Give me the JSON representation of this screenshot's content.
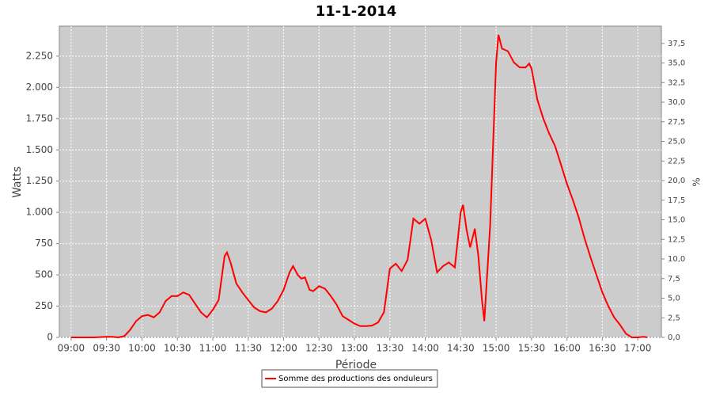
{
  "chart_data": {
    "type": "line",
    "title": "11-1-2014",
    "x_label": "Période",
    "y_label": "Watts",
    "y2_label": "%",
    "x": [
      "09:00",
      "09:10",
      "09:20",
      "09:30",
      "09:35",
      "09:40",
      "09:45",
      "09:50",
      "09:55",
      "10:00",
      "10:05",
      "10:10",
      "10:15",
      "10:20",
      "10:25",
      "10:30",
      "10:35",
      "10:40",
      "10:45",
      "10:50",
      "10:55",
      "11:00",
      "11:05",
      "11:10",
      "11:12",
      "11:15",
      "11:20",
      "11:25",
      "11:30",
      "11:35",
      "11:40",
      "11:45",
      "11:50",
      "11:55",
      "12:00",
      "12:05",
      "12:08",
      "12:12",
      "12:15",
      "12:18",
      "12:22",
      "12:25",
      "12:30",
      "12:35",
      "12:40",
      "12:45",
      "12:50",
      "12:55",
      "13:00",
      "13:05",
      "13:10",
      "13:15",
      "13:20",
      "13:25",
      "13:30",
      "13:35",
      "13:40",
      "13:45",
      "13:50",
      "13:55",
      "14:00",
      "14:05",
      "14:10",
      "14:15",
      "14:20",
      "14:25",
      "14:30",
      "14:32",
      "14:35",
      "14:38",
      "14:42",
      "14:45",
      "14:48",
      "14:50",
      "14:55",
      "15:00",
      "15:02",
      "15:05",
      "15:10",
      "15:15",
      "15:20",
      "15:25",
      "15:28",
      "15:30",
      "15:35",
      "15:40",
      "15:45",
      "15:50",
      "15:55",
      "16:00",
      "16:05",
      "16:10",
      "16:15",
      "16:20",
      "16:25",
      "16:30",
      "16:35",
      "16:40",
      "16:45",
      "16:50",
      "16:55",
      "17:00",
      "17:05",
      "17:08"
    ],
    "series": [
      {
        "name": "Somme des productions des onduleurs",
        "color": "#ff0000",
        "values": [
          0,
          0,
          0,
          5,
          5,
          0,
          10,
          60,
          130,
          170,
          180,
          160,
          200,
          290,
          330,
          330,
          360,
          340,
          270,
          200,
          160,
          220,
          300,
          650,
          680,
          600,
          430,
          360,
          300,
          240,
          210,
          200,
          230,
          290,
          380,
          520,
          570,
          500,
          470,
          480,
          380,
          370,
          410,
          390,
          330,
          260,
          170,
          140,
          110,
          90,
          90,
          95,
          120,
          200,
          550,
          590,
          530,
          620,
          950,
          910,
          950,
          780,
          520,
          570,
          600,
          560,
          1000,
          1060,
          860,
          720,
          870,
          650,
          300,
          130,
          900,
          2200,
          2420,
          2310,
          2290,
          2200,
          2160,
          2160,
          2190,
          2150,
          1900,
          1750,
          1630,
          1530,
          1380,
          1230,
          1100,
          960,
          790,
          640,
          500,
          360,
          250,
          160,
          100,
          30,
          0,
          0,
          5,
          0
        ]
      }
    ],
    "xlim": [
      "08:50",
      "17:20"
    ],
    "xticks": [
      "09:00",
      "09:30",
      "10:00",
      "10:30",
      "11:00",
      "11:30",
      "12:00",
      "12:30",
      "13:00",
      "13:30",
      "14:00",
      "14:30",
      "15:00",
      "15:30",
      "16:00",
      "16:30",
      "17:00"
    ],
    "ylim": [
      0,
      2490
    ],
    "yticks": [
      0,
      250,
      500,
      750,
      {
        "value": 1000,
        "label": "1.000"
      },
      {
        "value": 1250,
        "label": "1.250"
      },
      {
        "value": 1500,
        "label": "1.500"
      },
      {
        "value": 1750,
        "label": "1.750"
      },
      {
        "value": 2000,
        "label": "2.000"
      },
      {
        "value": 2250,
        "label": "2.250"
      }
    ],
    "y2lim": [
      0,
      39.7
    ],
    "y2ticks": [
      {
        "value": 0,
        "label": "0,0"
      },
      {
        "value": 2.5,
        "label": "2,5"
      },
      {
        "value": 5,
        "label": "5,0"
      },
      {
        "value": 7.5,
        "label": "7,5"
      },
      {
        "value": 10,
        "label": "10,0"
      },
      {
        "value": 12.5,
        "label": "12,5"
      },
      {
        "value": 15,
        "label": "15,0"
      },
      {
        "value": 17.5,
        "label": "17,5"
      },
      {
        "value": 20,
        "label": "20,0"
      },
      {
        "value": 22.5,
        "label": "22,5"
      },
      {
        "value": 25,
        "label": "25,0"
      },
      {
        "value": 27.5,
        "label": "27,5"
      },
      {
        "value": 30,
        "label": "30,0"
      },
      {
        "value": 32.5,
        "label": "32,5"
      },
      {
        "value": 35,
        "label": "35,0"
      },
      {
        "value": 37.5,
        "label": "37,5"
      }
    ],
    "grid": true,
    "legend": "bottom"
  }
}
